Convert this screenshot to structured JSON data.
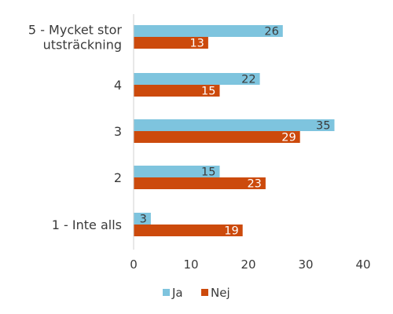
{
  "chart_data": {
    "type": "bar",
    "orientation": "horizontal",
    "categories": [
      "5 - Mycket stor utsträckning",
      "4",
      "3",
      "2",
      "1 - Inte alls"
    ],
    "category_lines": [
      [
        "5 - Mycket stor",
        "utsträckning"
      ],
      [
        "4"
      ],
      [
        "3"
      ],
      [
        "2"
      ],
      [
        "1 - Inte alls"
      ]
    ],
    "series": [
      {
        "name": "Ja",
        "values": [
          26,
          22,
          35,
          15,
          3
        ],
        "color": "#7ec4de",
        "label_color": "#3a3a3a"
      },
      {
        "name": "Nej",
        "values": [
          13,
          15,
          29,
          23,
          19
        ],
        "color": "#cc4a0c",
        "label_color": "#ffffff"
      }
    ],
    "xlim": [
      0,
      40
    ],
    "xticks": [
      "0",
      "10",
      "20",
      "30",
      "40"
    ],
    "grid": false,
    "legend": "bottom",
    "data_labels": true
  }
}
